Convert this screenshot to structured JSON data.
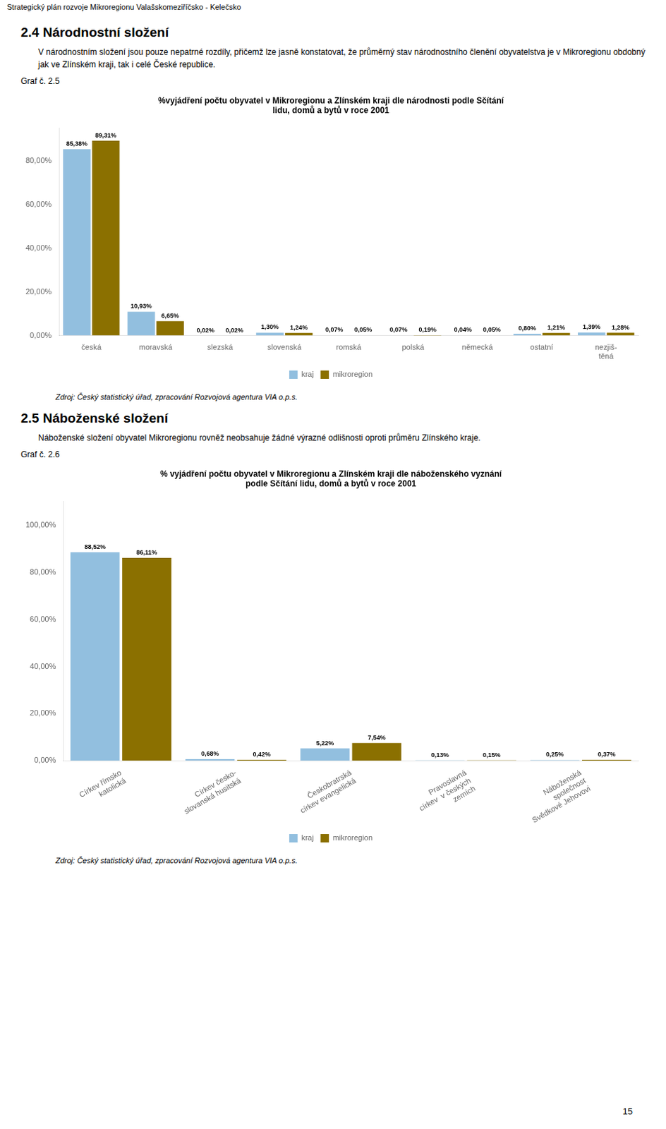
{
  "page_title": "Strategický plán  rozvoje Mikroregionu Valašskomeziříčsko - Kelečsko",
  "page_number": "15",
  "chart_data": [
    {
      "type": "bar",
      "section_title": "2.4  Národnostní složení",
      "section_text": "V národnostním složení jsou pouze nepatrné rozdíly, přičemž lze jasně konstatovat, že průměrný stav národnostního členění obyvatelstva je v Mikroregionu obdobný jak ve Zlínském kraji, tak i celé České republice.",
      "figure_label": "Graf č. 2.5",
      "title": [
        "%vyjádření počtu obyvatel v Mikroregionu a Zlínském kraji dle národnosti podle Sčítání",
        "lidu, domů a bytů v roce 2001"
      ],
      "categories": [
        "česká",
        "moravská",
        "slezská",
        "slovenská",
        "romská",
        "polská",
        "německá",
        "ostatní",
        "nezjiš-\ntěná"
      ],
      "series": [
        {
          "name": "kraj",
          "color": "#92BFDF",
          "values": [
            85.38,
            10.93,
            0.02,
            1.3,
            0.07,
            0.07,
            0.04,
            0.8,
            1.39
          ],
          "value_labels": [
            "85,38%",
            "10,93%",
            "0,02%",
            "1,30%",
            "0,07%",
            "0,07%",
            "0,04%",
            "0,80%",
            "1,39%"
          ]
        },
        {
          "name": "mikroregion",
          "color": "#8B7000",
          "values": [
            89.31,
            6.65,
            0.02,
            1.24,
            0.05,
            0.19,
            0.05,
            1.21,
            1.28
          ],
          "value_labels": [
            "89,31%",
            "6,65%",
            "0,02%",
            "1,24%",
            "0,05%",
            "0,19%",
            "0,05%",
            "1,21%",
            "1,28%"
          ]
        }
      ],
      "ylim": [
        0,
        95
      ],
      "yticks": [
        {
          "value": 0,
          "label": "0,00%"
        },
        {
          "value": 20,
          "label": "20,00%"
        },
        {
          "value": 40,
          "label": "40,00%"
        },
        {
          "value": 60,
          "label": "60,00%"
        },
        {
          "value": 80,
          "label": "80,00%"
        }
      ],
      "grid": false,
      "legend": "bottom",
      "data_labels": true,
      "source": "Zdroj: Český statistický úřad, zpracování Rozvojová agentura VIA o.p.s."
    },
    {
      "type": "bar",
      "section_title": "2.5  Náboženské složení",
      "section_text": "Náboženské složení obyvatel Mikroregionu rovněž neobsahuje žádné výrazné odlišnosti oproti průměru Zlínského kraje.",
      "figure_label": "Graf č. 2.6",
      "title": [
        "% vyjádření počtu obyvatel v Mikroregionu a Zlínském kraji dle náboženského vyznání",
        "podle Sčítání lidu, domů a bytů v roce 2001"
      ],
      "categories": [
        "Církev římsko\nkatolická",
        "Církev česko-\nslovanská husitská",
        "Českobratrská\ncírkev evangelická",
        "Pravoslavná\ncírkev  v českých\nzemích",
        "Náboženská\nspolečnost\nSvědkové Jehovovi"
      ],
      "series": [
        {
          "name": "kraj",
          "color": "#92BFDF",
          "values": [
            88.52,
            0.68,
            5.22,
            0.13,
            0.25
          ],
          "value_labels": [
            "88,52%",
            "0,68%",
            "5,22%",
            "0,13%",
            "0,25%"
          ]
        },
        {
          "name": "mikroregion",
          "color": "#8B7000",
          "values": [
            86.11,
            0.42,
            7.54,
            0.15,
            0.37
          ],
          "value_labels": [
            "86,11%",
            "0,42%",
            "7,54%",
            "0,15%",
            "0,37%"
          ]
        }
      ],
      "ylim": [
        0,
        110
      ],
      "yticks": [
        {
          "value": 0,
          "label": "0,00%"
        },
        {
          "value": 20,
          "label": "20,00%"
        },
        {
          "value": 40,
          "label": "40,00%"
        },
        {
          "value": 60,
          "label": "60,00%"
        },
        {
          "value": 80,
          "label": "80,00%"
        },
        {
          "value": 100,
          "label": "100,00%"
        }
      ],
      "grid": false,
      "legend": "bottom",
      "data_labels": true,
      "source": "Zdroj: Český statistický úřad, zpracování Rozvojová agentura VIA o.p.s."
    }
  ]
}
